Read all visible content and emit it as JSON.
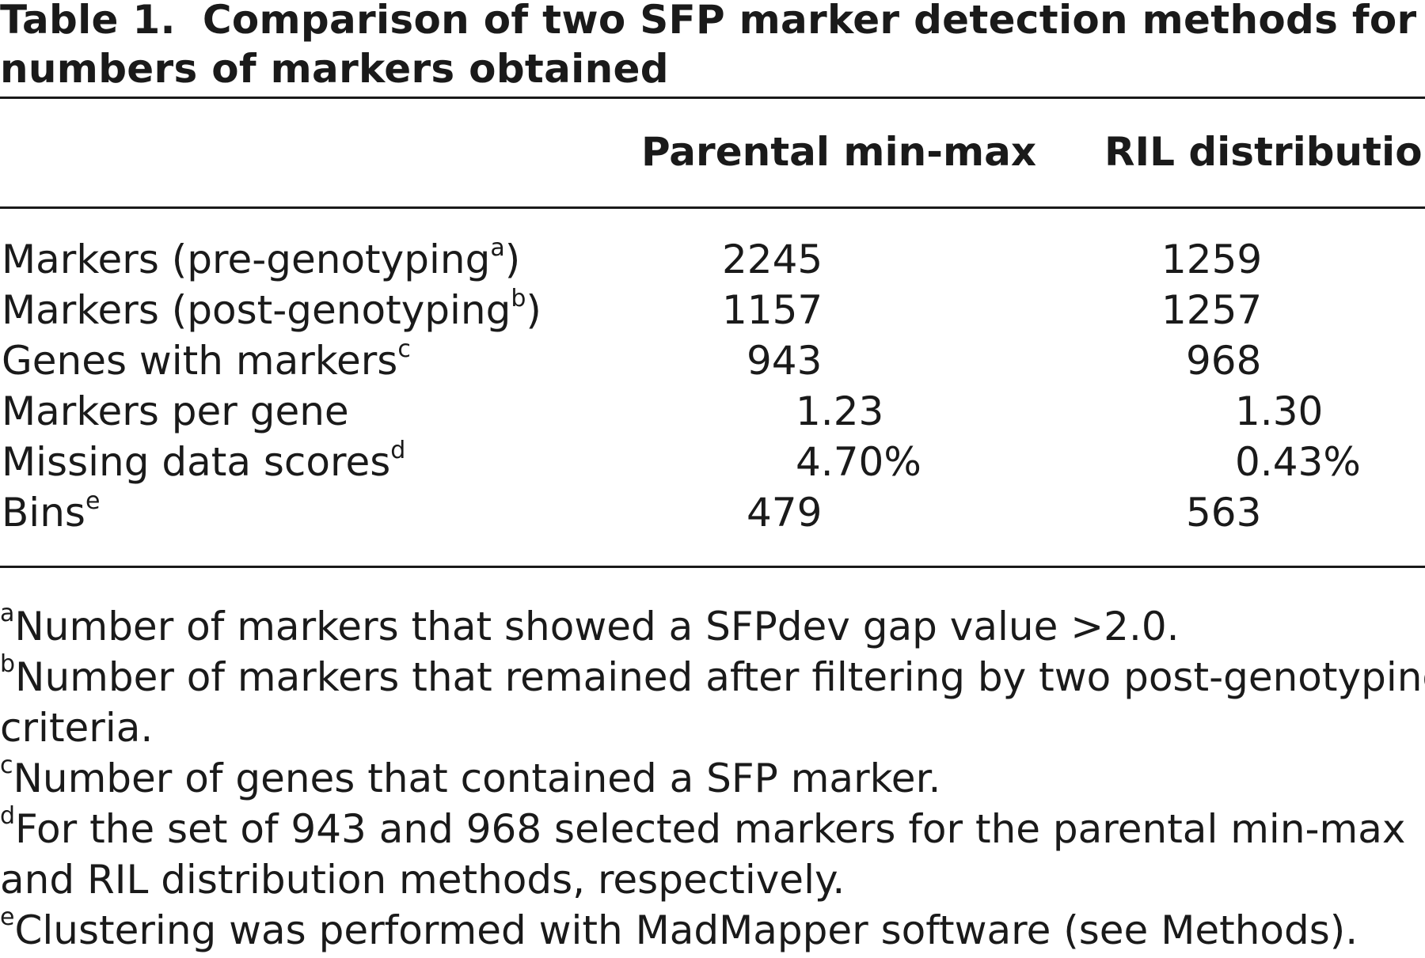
{
  "caption": {
    "label": "Table 1.",
    "text_line1": "Comparison of two SFP marker detection methods for",
    "text_line2": "numbers of markers obtained"
  },
  "columns": [
    "Parental min-max",
    "RIL distribution"
  ],
  "rows": [
    {
      "label": "Markers (pre-genotyping",
      "sup": "a",
      "label_end": ")",
      "v1": "2245",
      "v2": "1259"
    },
    {
      "label": "Markers (post-genotyping",
      "sup": "b",
      "label_end": ")",
      "v1": "1157",
      "v2": "1257"
    },
    {
      "label": "Genes with markers",
      "sup": "c",
      "label_end": "",
      "v1": "943",
      "v2": "968"
    },
    {
      "label": "Markers per gene",
      "sup": "",
      "label_end": "",
      "v1": "1.23",
      "v2": "1.30"
    },
    {
      "label": "Missing data scores",
      "sup": "d",
      "label_end": "",
      "v1": "4.70%",
      "v2": "0.43%"
    },
    {
      "label": "Bins",
      "sup": "e",
      "label_end": "",
      "v1": "479",
      "v2": "563"
    }
  ],
  "footnotes": [
    {
      "mark": "a",
      "line1": "Number of markers that showed a SFPdev gap value >2.0.",
      "line2": ""
    },
    {
      "mark": "b",
      "line1": "Number of markers that remained after filtering by two post-genotyping",
      "line2": "criteria."
    },
    {
      "mark": "c",
      "line1": "Number of genes that contained a SFP marker.",
      "line2": ""
    },
    {
      "mark": "d",
      "line1": "For the set of 943 and 968 selected markers for the parental min-max",
      "line2": "and RIL distribution methods, respectively."
    },
    {
      "mark": "e",
      "line1": "Clustering was performed with MadMapper software (see Methods).",
      "line2": ""
    }
  ]
}
